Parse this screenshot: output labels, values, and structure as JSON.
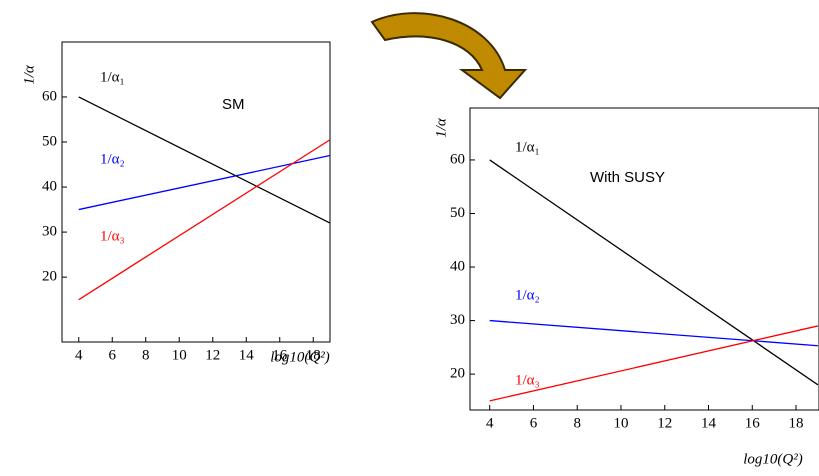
{
  "chart_data": [
    {
      "type": "line",
      "annotation": "SM",
      "y_label": "1/α",
      "x_label": "log10(Q²)",
      "x": [
        4,
        19
      ],
      "xlim": [
        3,
        19
      ],
      "ylim": [
        5.6,
        72.2
      ],
      "xticks": [
        4,
        6,
        8,
        10,
        12,
        14,
        16,
        18
      ],
      "yticks": [
        20,
        30,
        40,
        50,
        60
      ],
      "series": [
        {
          "name": "1/α₁",
          "color": "#000000",
          "values": [
            60,
            32
          ]
        },
        {
          "name": "1/α₂",
          "color": "#0000ff",
          "values": [
            35,
            47
          ]
        },
        {
          "name": "1/α₃",
          "color": "#ff0000",
          "values": [
            15,
            50.5
          ]
        }
      ]
    },
    {
      "type": "line",
      "annotation": "With SUSY",
      "y_label": "1/α",
      "x_label": "log10(Q²)",
      "x": [
        4,
        19
      ],
      "xlim": [
        3.1,
        19.05
      ],
      "ylim": [
        13.3,
        69.7
      ],
      "xticks": [
        4,
        6,
        8,
        10,
        12,
        14,
        16,
        18
      ],
      "yticks": [
        20,
        30,
        40,
        50,
        60
      ],
      "series": [
        {
          "name": "1/α₁",
          "color": "#000000",
          "values": [
            60,
            18
          ]
        },
        {
          "name": "1/α₂",
          "color": "#0000ff",
          "values": [
            30,
            25.3
          ]
        },
        {
          "name": "1/α₃",
          "color": "#ff0000",
          "values": [
            15,
            29
          ]
        }
      ]
    }
  ]
}
